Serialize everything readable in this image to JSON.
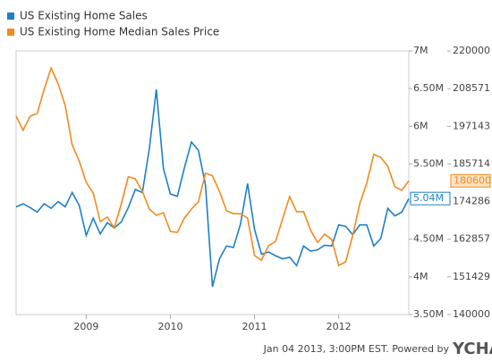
{
  "chart_data": {
    "type": "line",
    "footer": "Jan 04 2013, 3:00PM EST.  Powered by",
    "brand": "YCHARTS",
    "x": [
      2008.167,
      2008.25,
      2008.333,
      2008.417,
      2008.5,
      2008.583,
      2008.667,
      2008.75,
      2008.833,
      2008.917,
      2009,
      2009.083,
      2009.167,
      2009.25,
      2009.333,
      2009.417,
      2009.5,
      2009.583,
      2009.667,
      2009.75,
      2009.833,
      2009.917,
      2010,
      2010.083,
      2010.167,
      2010.25,
      2010.333,
      2010.417,
      2010.5,
      2010.583,
      2010.667,
      2010.75,
      2010.833,
      2010.917,
      2011,
      2011.083,
      2011.167,
      2011.25,
      2011.333,
      2011.417,
      2011.5,
      2011.583,
      2011.667,
      2011.75,
      2011.833,
      2011.917,
      2012,
      2012.083,
      2012.167,
      2012.25,
      2012.333,
      2012.417,
      2012.5,
      2012.583,
      2012.667,
      2012.75,
      2012.833
    ],
    "xlim": [
      2008.167,
      2012.833
    ],
    "xticks": [
      2009,
      2010,
      2011,
      2012
    ],
    "ylim": [
      3500000,
      7000000
    ],
    "yticks": [
      {
        "value": 3500000,
        "label": "3.50M"
      },
      {
        "value": 4000000,
        "label": "4M"
      },
      {
        "value": 4500000,
        "label": "4.50M"
      },
      {
        "value": 5000000,
        "label": "5M"
      },
      {
        "value": 5500000,
        "label": "5.50M"
      },
      {
        "value": 6000000,
        "label": "6M"
      },
      {
        "value": 6500000,
        "label": "6.50M"
      },
      {
        "value": 7000000,
        "label": "7M"
      }
    ],
    "y2lim": [
      140000,
      220000
    ],
    "y2ticks": [
      140000,
      151429,
      162857,
      174286,
      185714,
      197143,
      208571,
      220000
    ],
    "series": [
      {
        "name": "US Existing Home Sales",
        "color": "#1f7fc8",
        "values": [
          4930000,
          4970000,
          4920000,
          4860000,
          4970000,
          4910000,
          5000000,
          4930000,
          5120000,
          4950000,
          4550000,
          4780000,
          4570000,
          4720000,
          4650000,
          4730000,
          4920000,
          5160000,
          5120000,
          5700000,
          6490000,
          5440000,
          5100000,
          5070000,
          5450000,
          5790000,
          5680000,
          5220000,
          3870000,
          4240000,
          4410000,
          4390000,
          4700000,
          5240000,
          4630000,
          4300000,
          4330000,
          4280000,
          4240000,
          4260000,
          4150000,
          4410000,
          4340000,
          4360000,
          4420000,
          4410000,
          4690000,
          4670000,
          4560000,
          4690000,
          4690000,
          4410000,
          4510000,
          4910000,
          4810000,
          4860000,
          5040000
        ],
        "value_labels": [
          null,
          null,
          null,
          null,
          null,
          null,
          null,
          null,
          null,
          null,
          null,
          null,
          null,
          null,
          null,
          null,
          null,
          null,
          null,
          null,
          null,
          null,
          null,
          null,
          null,
          null,
          null,
          null,
          null,
          null,
          null,
          null,
          null,
          null,
          null,
          null,
          null,
          null,
          null,
          null,
          null,
          null,
          null,
          null,
          null,
          null,
          null,
          null,
          null,
          null,
          null,
          null,
          null,
          null,
          null,
          null,
          "5.04M"
        ]
      },
      {
        "name": "US Existing Home Median Sales Price",
        "color": "#f28a1e",
        "axis": "y2",
        "values": [
          200200,
          195900,
          200200,
          201000,
          208300,
          214800,
          210000,
          203500,
          191500,
          186600,
          180100,
          176900,
          168200,
          169600,
          166300,
          173600,
          181800,
          181200,
          177400,
          172000,
          170100,
          170900,
          165200,
          164900,
          169300,
          172000,
          174200,
          182900,
          182100,
          177400,
          171500,
          170600,
          170600,
          169300,
          157900,
          156500,
          160900,
          162200,
          169000,
          175800,
          171200,
          171200,
          165500,
          161900,
          164400,
          162800,
          154900,
          156000,
          164100,
          173600,
          179900,
          188600,
          187700,
          185000,
          178800,
          177700,
          180600
        ]
      }
    ]
  }
}
